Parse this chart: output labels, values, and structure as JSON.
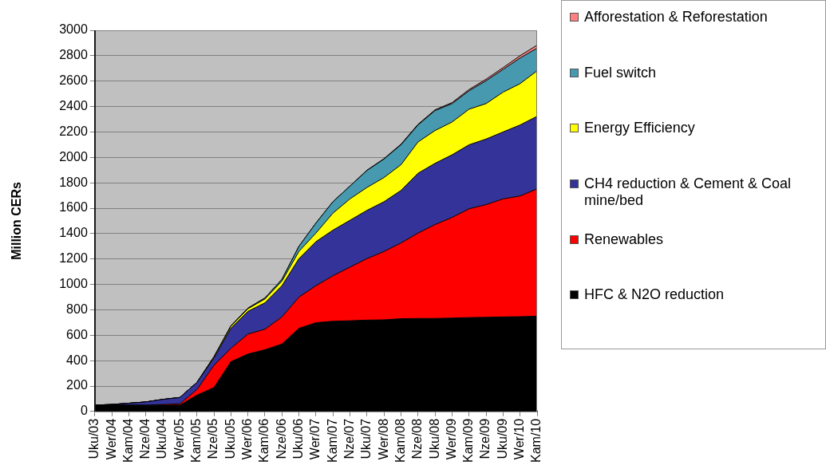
{
  "chart_data": {
    "type": "area",
    "stacked": true,
    "ylabel": "Million CERs",
    "categories": [
      "Uku/03",
      "Wer/04",
      "Kam/04",
      "Nze/04",
      "Uku/04",
      "Wer/05",
      "Kam/05",
      "Nze/05",
      "Uku/05",
      "Wer/06",
      "Kam/06",
      "Nze/06",
      "Uku/06",
      "Wer/07",
      "Kam/07",
      "Nze/07",
      "Uku/07",
      "Wer/08",
      "Kam/08",
      "Nze/08",
      "Uku/08",
      "Wer/09",
      "Kam/09",
      "Nze/09",
      "Uku/09",
      "Wer/10",
      "Kam/10"
    ],
    "series": [
      {
        "name": "HFC & N2O reduction",
        "color": "#000000",
        "values": [
          50,
          50,
          50,
          48,
          50,
          50,
          128,
          188,
          392,
          452,
          486,
          531,
          654,
          699,
          710,
          714,
          719,
          721,
          730,
          732,
          732,
          735,
          739,
          741,
          744,
          746,
          750
        ]
      },
      {
        "name": "Renewables",
        "color": "#ff0000",
        "values": [
          0,
          0,
          0,
          2,
          5,
          10,
          44,
          175,
          105,
          157,
          161,
          213,
          246,
          291,
          358,
          422,
          484,
          538,
          596,
          672,
          739,
          792,
          856,
          887,
          929,
          950,
          1002
        ]
      },
      {
        "name": "CH4 reduction & Cement & Coal mine/bed",
        "color": "#333399",
        "values": [
          0,
          5,
          15,
          25,
          40,
          50,
          56,
          57,
          157,
          179,
          208,
          246,
          303,
          347,
          359,
          369,
          380,
          392,
          414,
          471,
          482,
          493,
          504,
          516,
          527,
          559,
          571
        ]
      },
      {
        "name": "Energy Efficiency",
        "color": "#ffff00",
        "values": [
          0,
          0,
          0,
          0,
          0,
          0,
          0,
          10,
          15,
          20,
          30,
          35,
          57,
          67,
          134,
          168,
          180,
          190,
          202,
          246,
          258,
          258,
          280,
          279,
          313,
          325,
          358
        ]
      },
      {
        "name": "Fuel switch",
        "color": "#4699ae",
        "values": [
          0,
          0,
          0,
          0,
          0,
          0,
          0,
          0,
          5,
          5,
          8,
          15,
          40,
          79,
          90,
          101,
          134,
          146,
          157,
          134,
          157,
          145,
          145,
          180,
          179,
          202,
          179
        ]
      },
      {
        "name": "Afforestation & Reforestation",
        "color": "#ff8080",
        "values": [
          0,
          0,
          0,
          0,
          0,
          0,
          0,
          0,
          0,
          0,
          0,
          0,
          0,
          0,
          0,
          0,
          2,
          3,
          5,
          5,
          6,
          8,
          10,
          12,
          14,
          18,
          23
        ]
      }
    ],
    "ylim": [
      0,
      3000
    ],
    "yticks": [
      0,
      200,
      400,
      600,
      800,
      1000,
      1200,
      1400,
      1600,
      1800,
      2000,
      2200,
      2400,
      2600,
      2800,
      3000
    ],
    "grid": "y",
    "legend": "right"
  }
}
